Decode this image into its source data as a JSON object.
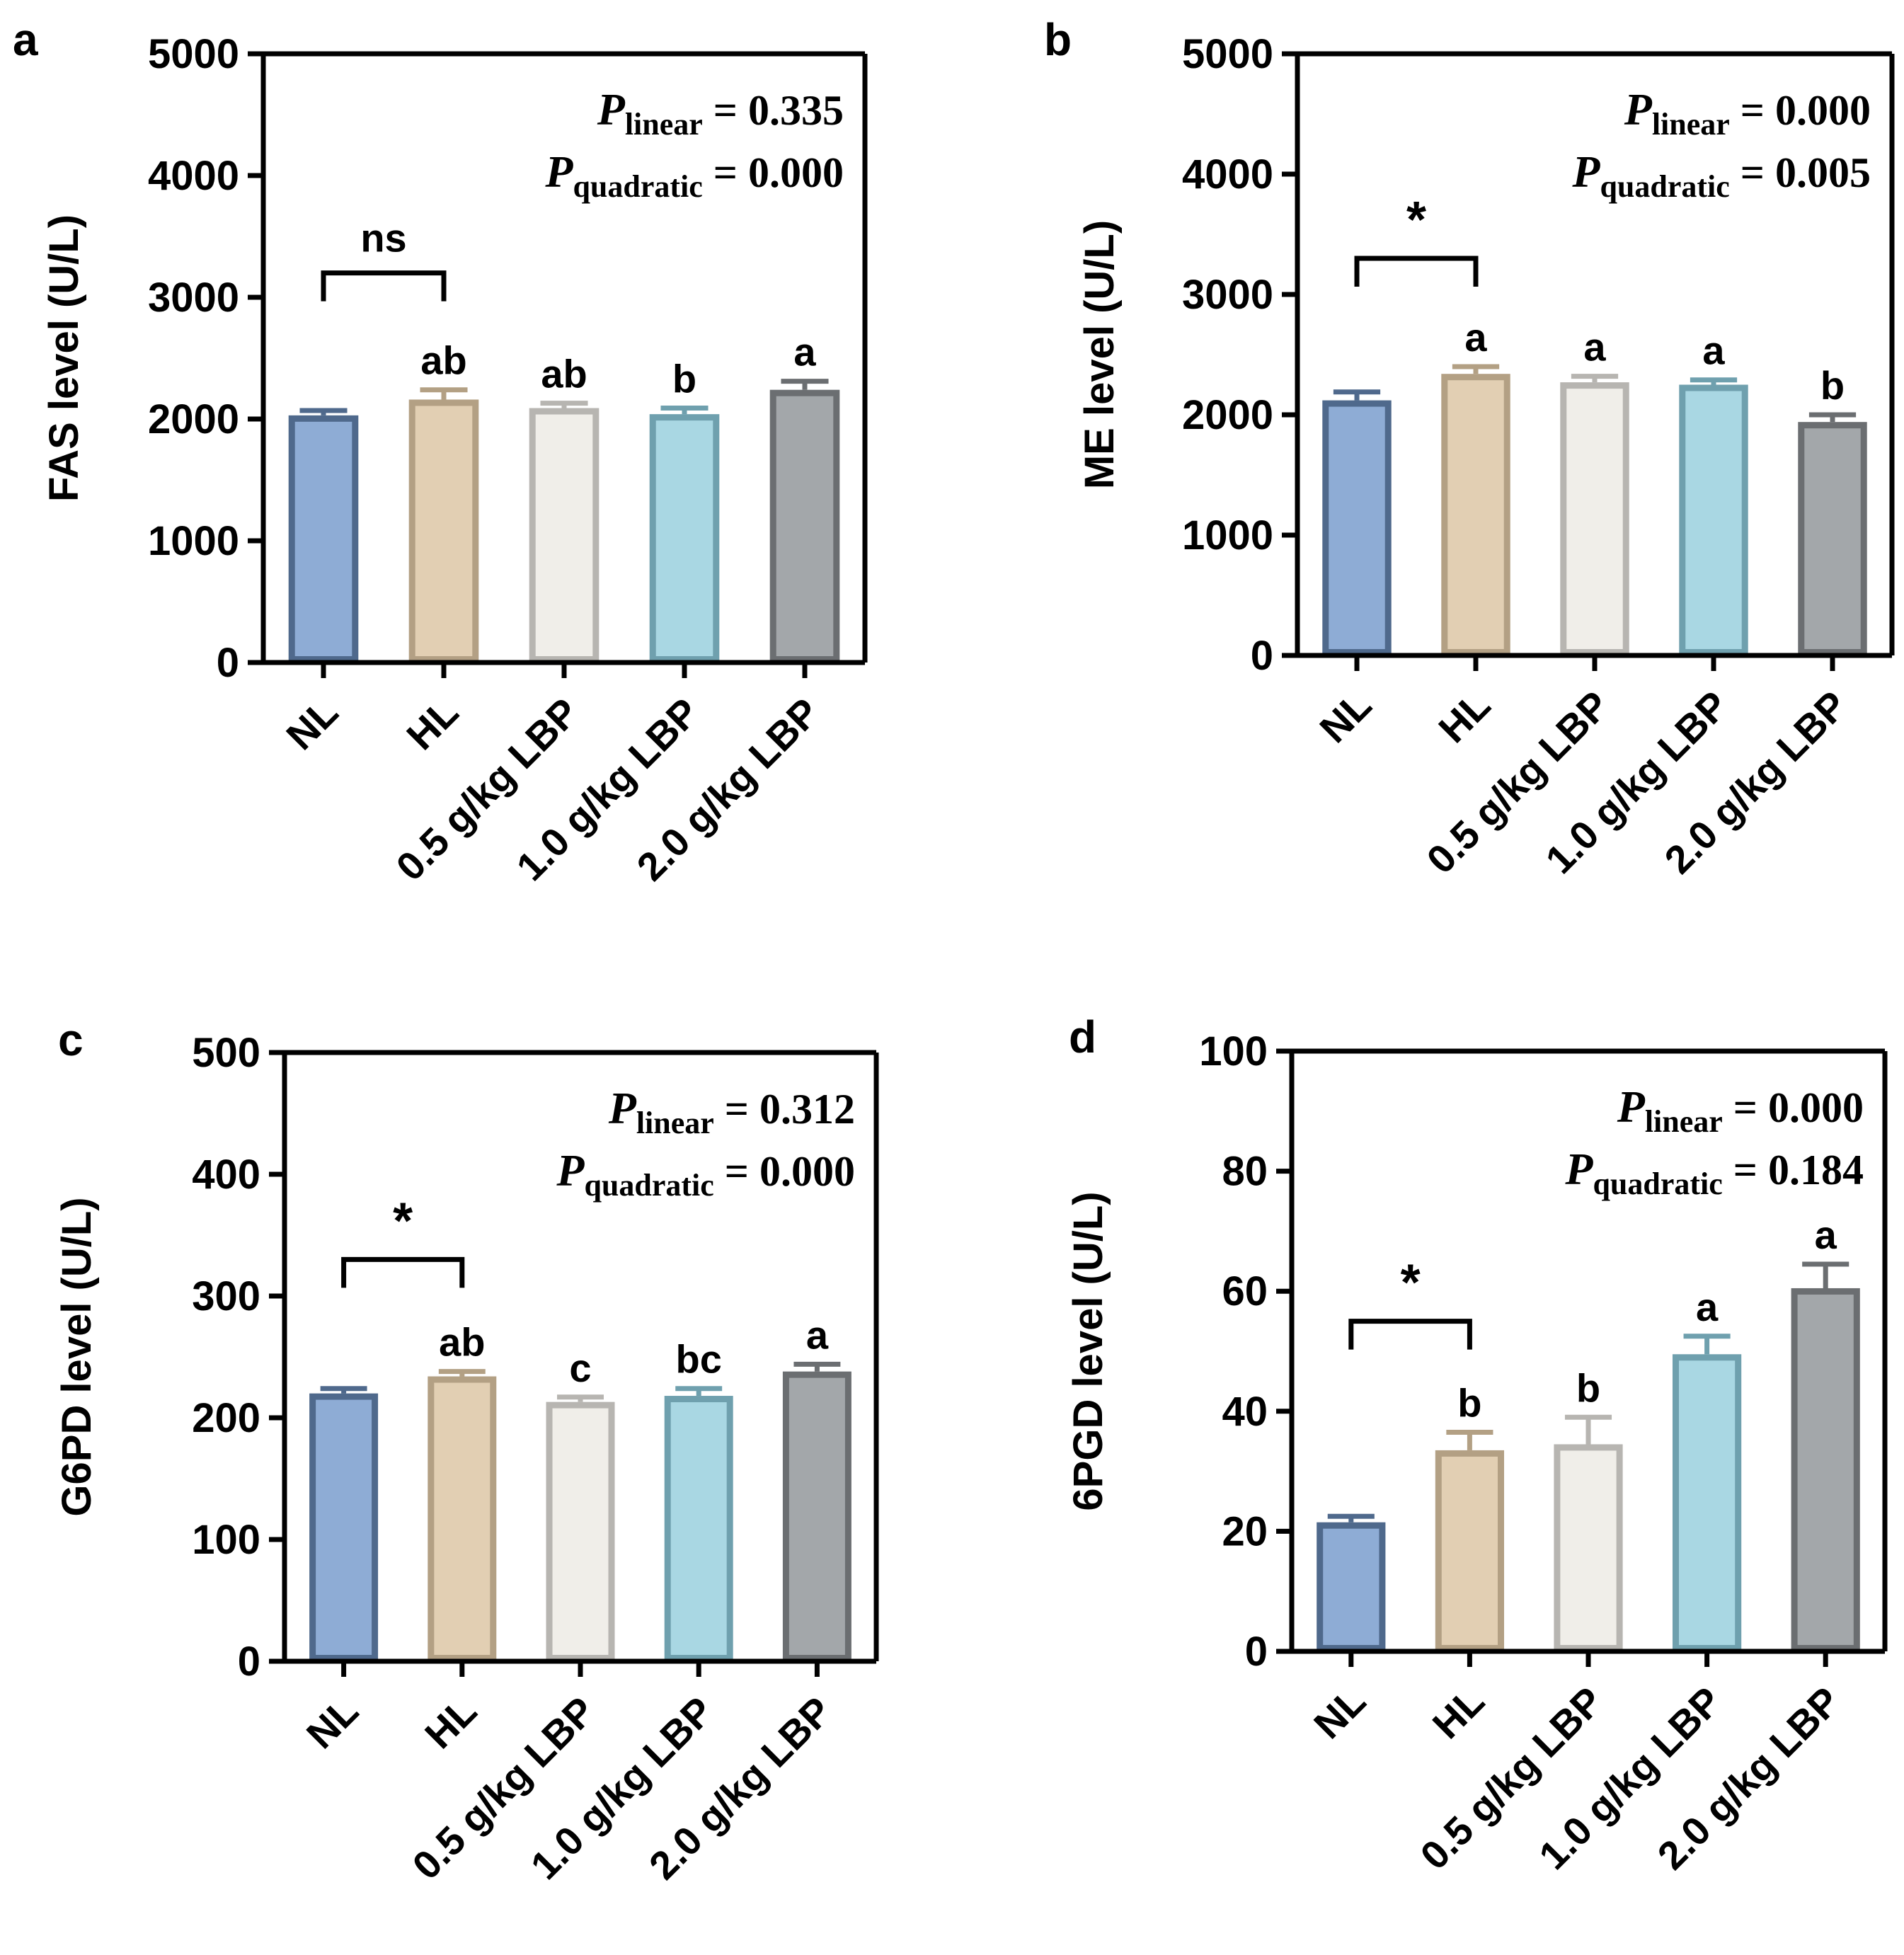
{
  "chart_data": [
    {
      "type": "bar",
      "panel_label": "a",
      "ylabel": "FAS level (U/L)",
      "xlabel": "",
      "categories": [
        "NL",
        "HL",
        "0.5 g/kg LBP",
        "1.0 g/kg LBP",
        "2.0 g/kg LBP"
      ],
      "values": [
        2030,
        2160,
        2090,
        2040,
        2240
      ],
      "errors": [
        40,
        80,
        40,
        50,
        70
      ],
      "letters": [
        "",
        "ab",
        "ab",
        "b",
        "a"
      ],
      "ylim": [
        0,
        5000
      ],
      "yticks": [
        0,
        1000,
        2000,
        3000,
        4000,
        5000
      ],
      "bracket": {
        "from": 0,
        "to": 1,
        "label": "ns",
        "value": 3200
      },
      "stats": [
        {
          "p": "P",
          "sub": "linear",
          "rest": " = 0.335"
        },
        {
          "p": "P",
          "sub": "quadratic",
          "rest": " = 0.000"
        }
      ]
    },
    {
      "type": "bar",
      "panel_label": "b",
      "ylabel": "ME level (U/L)",
      "xlabel": "",
      "categories": [
        "NL",
        "HL",
        "0.5 g/kg LBP",
        "1.0 g/kg LBP",
        "2.0 g/kg LBP"
      ],
      "values": [
        2120,
        2340,
        2270,
        2250,
        1940
      ],
      "errors": [
        70,
        60,
        50,
        40,
        60
      ],
      "letters": [
        "",
        "a",
        "a",
        "a",
        "b"
      ],
      "ylim": [
        0,
        5000
      ],
      "yticks": [
        0,
        1000,
        2000,
        3000,
        4000,
        5000
      ],
      "bracket": {
        "from": 0,
        "to": 1,
        "label": "*",
        "value": 3300
      },
      "stats": [
        {
          "p": "P",
          "sub": "linear",
          "rest": " = 0.000"
        },
        {
          "p": "P",
          "sub": "quadratic",
          "rest": " = 0.005"
        }
      ]
    },
    {
      "type": "bar",
      "panel_label": "c",
      "ylabel": "G6PD level (U/L)",
      "xlabel": "",
      "categories": [
        "NL",
        "HL",
        "0.5 g/kg LBP",
        "1.0 g/kg LBP",
        "2.0 g/kg LBP"
      ],
      "values": [
        220,
        234,
        213,
        218,
        238
      ],
      "errors": [
        4,
        4,
        4,
        6,
        6
      ],
      "letters": [
        "",
        "ab",
        "c",
        "bc",
        "a"
      ],
      "ylim": [
        0,
        500
      ],
      "yticks": [
        0,
        100,
        200,
        300,
        400,
        500
      ],
      "bracket": {
        "from": 0,
        "to": 1,
        "label": "*",
        "value": 330
      },
      "stats": [
        {
          "p": "P",
          "sub": "linear",
          "rest": " = 0.312"
        },
        {
          "p": "P",
          "sub": "quadratic",
          "rest": " = 0.000"
        }
      ]
    },
    {
      "type": "bar",
      "panel_label": "d",
      "ylabel": "6PGD level (U/L)",
      "xlabel": "",
      "categories": [
        "NL",
        "HL",
        "0.5 g/kg LBP",
        "1.0 g/kg LBP",
        "2.0 g/kg LBP"
      ],
      "values": [
        21.5,
        33.5,
        34.5,
        49.5,
        60.5
      ],
      "errors": [
        1.0,
        3.0,
        4.5,
        3.0,
        4.0
      ],
      "letters": [
        "",
        "b",
        "b",
        "a",
        "a"
      ],
      "ylim": [
        0,
        100
      ],
      "yticks": [
        0,
        20,
        40,
        60,
        80,
        100
      ],
      "bracket": {
        "from": 0,
        "to": 1,
        "label": "*",
        "value": 55
      },
      "stats": [
        {
          "p": "P",
          "sub": "linear",
          "rest": " = 0.000"
        },
        {
          "p": "P",
          "sub": "quadratic",
          "rest": " = 0.184"
        }
      ]
    }
  ],
  "colors": {
    "fills": [
      "#8eacd5",
      "#e2cfb3",
      "#f0eee9",
      "#a9d7e3",
      "#a3a7aa"
    ],
    "strokes": [
      "#4f698c",
      "#b3a084",
      "#b7b5b1",
      "#6fa0ae",
      "#6b6e71"
    ],
    "axis": "#000000"
  }
}
